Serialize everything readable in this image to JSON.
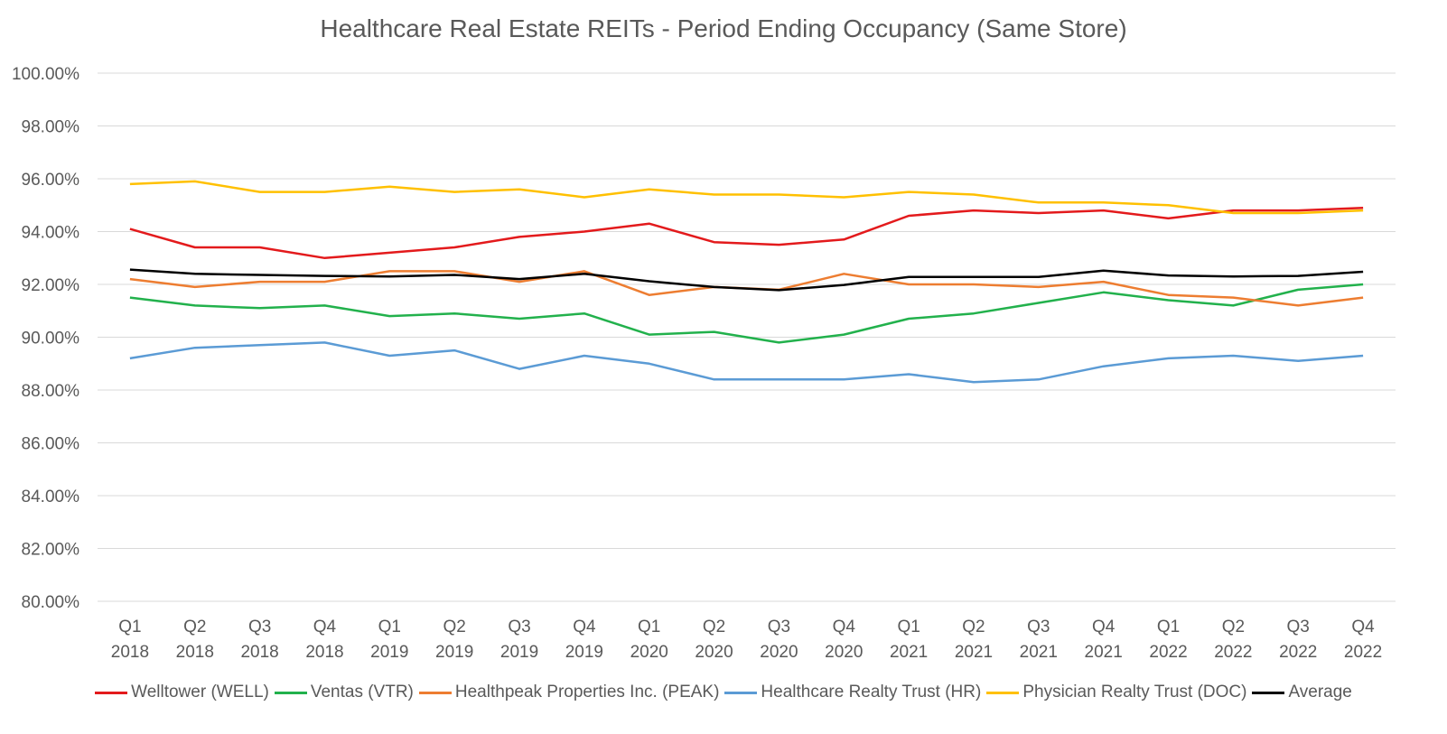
{
  "chart_data": {
    "type": "line",
    "title": "Healthcare Real Estate REITs - Period Ending Occupancy (Same Store)",
    "xlabel": "",
    "ylabel": "",
    "ylim": [
      80,
      100
    ],
    "y_ticks": [
      "100.00%",
      "98.00%",
      "96.00%",
      "94.00%",
      "92.00%",
      "90.00%",
      "88.00%",
      "86.00%",
      "84.00%",
      "82.00%",
      "80.00%"
    ],
    "y_tick_values": [
      100,
      98,
      96,
      94,
      92,
      90,
      88,
      86,
      84,
      82,
      80
    ],
    "categories": [
      [
        "Q1",
        "2018"
      ],
      [
        "Q2",
        "2018"
      ],
      [
        "Q3",
        "2018"
      ],
      [
        "Q4",
        "2018"
      ],
      [
        "Q1",
        "2019"
      ],
      [
        "Q2",
        "2019"
      ],
      [
        "Q3",
        "2019"
      ],
      [
        "Q4",
        "2019"
      ],
      [
        "Q1",
        "2020"
      ],
      [
        "Q2",
        "2020"
      ],
      [
        "Q3",
        "2020"
      ],
      [
        "Q4",
        "2020"
      ],
      [
        "Q1",
        "2021"
      ],
      [
        "Q2",
        "2021"
      ],
      [
        "Q3",
        "2021"
      ],
      [
        "Q4",
        "2021"
      ],
      [
        "Q1",
        "2022"
      ],
      [
        "Q2",
        "2022"
      ],
      [
        "Q3",
        "2022"
      ],
      [
        "Q4",
        "2022"
      ]
    ],
    "grid": true,
    "legend_position": "bottom",
    "series": [
      {
        "name": "Welltower (WELL)",
        "color": "#e31a1c",
        "values": [
          94.1,
          93.4,
          93.4,
          93.0,
          93.2,
          93.4,
          93.8,
          94.0,
          94.3,
          93.6,
          93.5,
          93.7,
          94.6,
          94.8,
          94.7,
          94.8,
          94.5,
          94.8,
          94.8,
          94.9
        ]
      },
      {
        "name": "Ventas (VTR)",
        "color": "#22b14c",
        "values": [
          91.5,
          91.2,
          91.1,
          91.2,
          90.8,
          90.9,
          90.7,
          90.9,
          90.1,
          90.2,
          89.8,
          90.1,
          90.7,
          90.9,
          91.3,
          91.7,
          91.4,
          91.2,
          91.8,
          92.0
        ]
      },
      {
        "name": "Healthpeak Properties Inc. (PEAK)",
        "color": "#ed7d31",
        "values": [
          92.2,
          91.9,
          92.1,
          92.1,
          92.5,
          92.5,
          92.1,
          92.5,
          91.6,
          91.9,
          91.8,
          92.4,
          92.0,
          92.0,
          91.9,
          92.1,
          91.6,
          91.5,
          91.2,
          91.5
        ]
      },
      {
        "name": "Healthcare Realty Trust (HR)",
        "color": "#5b9bd5",
        "values": [
          89.2,
          89.6,
          89.7,
          89.8,
          89.3,
          89.5,
          88.8,
          89.3,
          89.0,
          88.4,
          88.4,
          88.4,
          88.6,
          88.3,
          88.4,
          88.9,
          89.2,
          89.3,
          89.1,
          89.3
        ]
      },
      {
        "name": "Physician Realty Trust (DOC)",
        "color": "#ffc000",
        "values": [
          95.8,
          95.9,
          95.5,
          95.5,
          95.7,
          95.5,
          95.6,
          95.3,
          95.6,
          95.4,
          95.4,
          95.3,
          95.5,
          95.4,
          95.1,
          95.1,
          95.0,
          94.7,
          94.7,
          94.8
        ]
      },
      {
        "name": "Average",
        "color": "#000000",
        "values": [
          92.56,
          92.4,
          92.36,
          92.32,
          92.3,
          92.36,
          92.2,
          92.4,
          92.12,
          91.9,
          91.78,
          91.98,
          92.28,
          92.28,
          92.28,
          92.52,
          92.34,
          92.3,
          92.32,
          92.48
        ]
      }
    ]
  }
}
